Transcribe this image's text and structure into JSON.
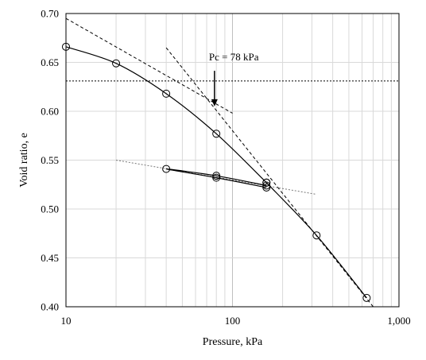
{
  "chart_data": {
    "type": "scatter",
    "title": "",
    "xlabel": "Pressure, kPa",
    "ylabel": "Void ratio, e",
    "xscale": "log",
    "xlim": [
      10,
      1000
    ],
    "ylim": [
      0.4,
      0.7
    ],
    "grid": true,
    "x_tick_labels": [
      "10",
      "100",
      "1,000"
    ],
    "x_ticks": [
      10,
      100,
      1000
    ],
    "y_tick_labels": [
      "0.40",
      "0.45",
      "0.50",
      "0.55",
      "0.60",
      "0.65",
      "0.70"
    ],
    "y_ticks": [
      0.4,
      0.45,
      0.5,
      0.55,
      0.6,
      0.65,
      0.7
    ],
    "series": [
      {
        "role": "loading",
        "x": [
          10,
          20,
          40,
          80,
          160
        ],
        "y": [
          0.666,
          0.649,
          0.618,
          0.577,
          0.527
        ]
      },
      {
        "role": "unload-reload",
        "x": [
          160,
          80,
          40,
          80,
          160
        ],
        "y": [
          0.522,
          0.532,
          0.541,
          0.534,
          0.524
        ]
      },
      {
        "role": "virgin-compression",
        "x": [
          160,
          320,
          640
        ],
        "y": [
          0.527,
          0.473,
          0.409
        ]
      }
    ],
    "construction_lines": [
      {
        "style": "dashed",
        "x": [
          10,
          100
        ],
        "y": [
          0.695,
          0.598
        ]
      },
      {
        "style": "dashed",
        "x": [
          40,
          700
        ],
        "y": [
          0.665,
          0.4
        ]
      },
      {
        "style": "dotted",
        "x": [
          10,
          1000
        ],
        "y": [
          0.631,
          0.631
        ]
      },
      {
        "style": "dotted",
        "x": [
          20,
          320
        ],
        "y": [
          0.55,
          0.515
        ]
      }
    ],
    "annotation": {
      "text": "Pc = 78 kPa",
      "x": 78,
      "arrow_from_y": 0.63,
      "arrow_to_y": 0.605
    }
  }
}
